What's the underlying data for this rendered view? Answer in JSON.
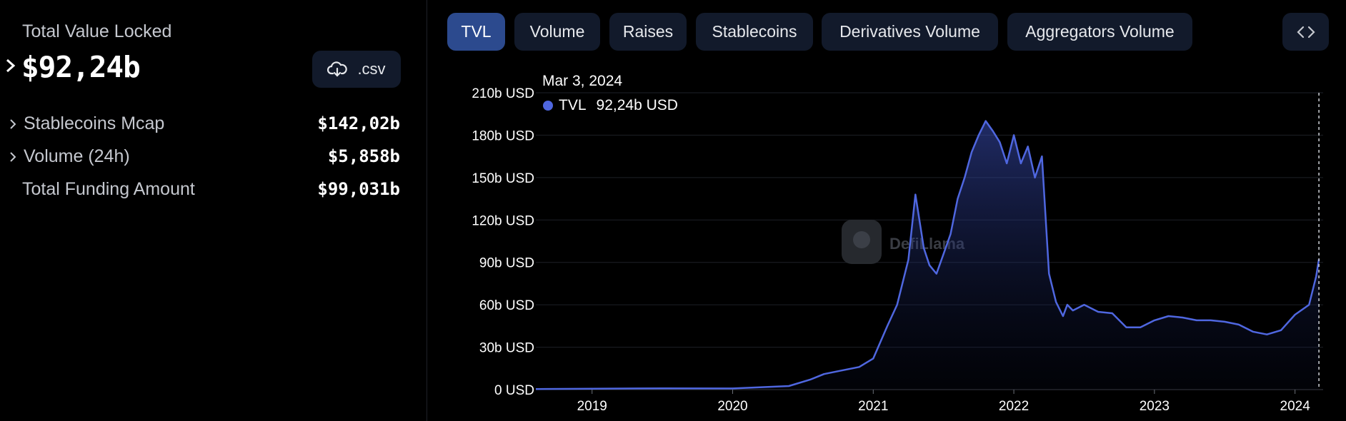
{
  "stats": {
    "tvl_label": "Total Value Locked",
    "tvl_value": "$92,24b",
    "csv_label": ".csv",
    "rows": [
      {
        "label": "Stablecoins Mcap",
        "value": "$142,02b"
      },
      {
        "label": "Volume (24h)",
        "value": "$5,858b"
      },
      {
        "label": "Total Funding Amount",
        "value": "$99,031b"
      }
    ]
  },
  "tabs": [
    "TVL",
    "Volume",
    "Raises",
    "Stablecoins",
    "Derivatives Volume",
    "Aggregators Volume"
  ],
  "active_tab": "TVL",
  "colors": {
    "line": "#4f67e0",
    "active_tab": "#2c4a8e",
    "tab_bg": "#121a2b"
  },
  "tooltip": {
    "date": "Mar 3, 2024",
    "series": "TVL",
    "value": "92,24b USD"
  },
  "watermark": "DefiLlama",
  "chart_data": {
    "type": "area",
    "series": [
      {
        "name": "TVL",
        "x": [
          2018.6,
          2019.0,
          2019.5,
          2020.0,
          2020.4,
          2020.55,
          2020.65,
          2020.75,
          2020.9,
          2021.0,
          2021.1,
          2021.17,
          2021.25,
          2021.3,
          2021.36,
          2021.4,
          2021.45,
          2021.5,
          2021.55,
          2021.6,
          2021.65,
          2021.7,
          2021.75,
          2021.8,
          2021.85,
          2021.9,
          2021.95,
          2022.0,
          2022.05,
          2022.1,
          2022.15,
          2022.2,
          2022.25,
          2022.3,
          2022.35,
          2022.38,
          2022.42,
          2022.5,
          2022.6,
          2022.7,
          2022.8,
          2022.9,
          2023.0,
          2023.1,
          2023.2,
          2023.3,
          2023.4,
          2023.5,
          2023.6,
          2023.7,
          2023.8,
          2023.9,
          2024.0,
          2024.1,
          2024.15,
          2024.17
        ],
        "y": [
          0.4,
          0.6,
          0.9,
          0.8,
          2.5,
          7,
          11,
          13,
          16,
          22,
          45,
          60,
          92,
          138,
          100,
          88,
          82,
          96,
          110,
          135,
          150,
          168,
          180,
          190,
          183,
          175,
          160,
          180,
          160,
          172,
          150,
          165,
          82,
          62,
          52,
          60,
          56,
          60,
          55,
          54,
          44,
          44,
          49,
          52,
          51,
          49,
          49,
          48,
          46,
          41,
          39,
          42,
          53,
          60,
          80,
          92.24
        ]
      }
    ],
    "ylim": [
      0,
      210
    ],
    "xlim": [
      2018.6,
      2024.2
    ],
    "yticks": [
      0,
      30,
      60,
      90,
      120,
      150,
      180,
      210
    ],
    "ytick_labels": [
      "0 USD",
      "30b USD",
      "60b USD",
      "90b USD",
      "120b USD",
      "150b USD",
      "180b USD",
      "210b USD"
    ],
    "xticks": [
      2019,
      2020,
      2021,
      2022,
      2023,
      2024
    ],
    "xtick_labels": [
      "2019",
      "2020",
      "2021",
      "2022",
      "2023",
      "2024"
    ],
    "grid": "horizontal",
    "xlabel": "",
    "ylabel": ""
  }
}
